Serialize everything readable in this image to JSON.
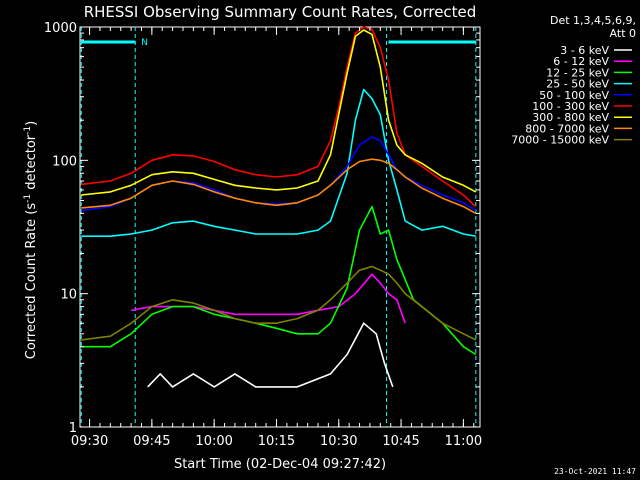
{
  "chart_data": {
    "type": "line",
    "title": "RHESSI Observing Summary Count Rates, Corrected",
    "xlabel": "Start Time (02-Dec-04 09:27:42)",
    "ylabel": "Corrected Count Rate (s",
    "ylabel_sup1": "-1",
    "ylabel_mid": " detector",
    "ylabel_sup2": "-1",
    "ylabel_end": ")",
    "y_scale": "log",
    "ylim": [
      1,
      1000
    ],
    "y_ticks": [
      1,
      10,
      100,
      1000
    ],
    "y_tick_labels": [
      "1",
      "10",
      "100",
      "1000"
    ],
    "x_unit": "minutes after 09:00",
    "xlim": [
      27.7,
      124.0
    ],
    "x_ticks": [
      30,
      45,
      60,
      75,
      90,
      105,
      120
    ],
    "x_tick_labels": [
      "09:30",
      "09:45",
      "10:00",
      "10:15",
      "10:30",
      "10:45",
      "11:00"
    ],
    "legend_header": [
      "Det 1,3,4,5,6,9,",
      "Att 0"
    ],
    "legend_position": "right",
    "markers": [
      {
        "x": 28.0,
        "label": ""
      },
      {
        "x": 41.0,
        "label": "N"
      },
      {
        "x": 101.5,
        "label": ""
      },
      {
        "x": 123.0,
        "label": ""
      }
    ],
    "marker_color": "#00ffff",
    "series": [
      {
        "name": "3 - 6 keV",
        "color": "#ffffff",
        "x": [
          44,
          47,
          50,
          55,
          60,
          65,
          70,
          75,
          80,
          85,
          88,
          92,
          96,
          99,
          101,
          103
        ],
        "y": [
          2,
          2.5,
          2,
          2.5,
          2,
          2.5,
          2,
          2,
          2,
          2.3,
          2.5,
          3.5,
          6,
          5,
          3,
          2
        ]
      },
      {
        "name": "6 - 12 keV",
        "color": "#ff00ff",
        "x": [
          40,
          45,
          50,
          55,
          60,
          65,
          70,
          75,
          80,
          85,
          90,
          94,
          98,
          100,
          102,
          104,
          106
        ],
        "y": [
          7.5,
          8,
          8,
          8,
          7.5,
          7,
          7,
          7,
          7,
          7.5,
          8,
          10,
          14,
          12,
          10,
          9,
          6
        ]
      },
      {
        "name": "12 - 25 keV",
        "color": "#00ff00",
        "x": [
          28,
          35,
          40,
          45,
          50,
          55,
          60,
          65,
          70,
          75,
          80,
          85,
          88,
          92,
          95,
          98,
          100,
          102,
          104,
          108,
          115,
          120,
          123
        ],
        "y": [
          4,
          4,
          5,
          7,
          8,
          8,
          7,
          6.5,
          6,
          5.5,
          5,
          5,
          6,
          11,
          30,
          45,
          28,
          30,
          18,
          9,
          6,
          4,
          3.5
        ]
      },
      {
        "name": "25 - 50 keV",
        "color": "#00ffff",
        "x": [
          28,
          35,
          40,
          45,
          50,
          55,
          60,
          65,
          70,
          75,
          80,
          85,
          88,
          92,
          94,
          96,
          98,
          100,
          102,
          104,
          106,
          110,
          115,
          120,
          123
        ],
        "y": [
          27,
          27,
          28,
          30,
          34,
          35,
          32,
          30,
          28,
          28,
          28,
          30,
          35,
          80,
          200,
          340,
          290,
          220,
          100,
          60,
          35,
          30,
          32,
          28,
          27
        ]
      },
      {
        "name": "50 - 100 keV",
        "color": "#0000ff",
        "x": [
          28,
          35,
          40,
          45,
          50,
          55,
          60,
          65,
          70,
          75,
          80,
          85,
          88,
          92,
          95,
          98,
          100,
          102,
          104,
          106,
          110,
          115,
          120,
          123
        ],
        "y": [
          42,
          45,
          52,
          65,
          70,
          68,
          60,
          52,
          48,
          47,
          48,
          55,
          65,
          90,
          130,
          150,
          140,
          110,
          85,
          75,
          65,
          55,
          48,
          42
        ]
      },
      {
        "name": "100 - 300 keV",
        "color": "#ff0000",
        "x": [
          28,
          35,
          40,
          45,
          50,
          55,
          60,
          65,
          70,
          75,
          80,
          85,
          88,
          90,
          92,
          94,
          96,
          98,
          100,
          102,
          104,
          106,
          110,
          115,
          120,
          123
        ],
        "y": [
          66,
          70,
          80,
          100,
          110,
          108,
          98,
          85,
          78,
          75,
          78,
          90,
          140,
          250,
          500,
          900,
          1000,
          960,
          700,
          400,
          160,
          110,
          90,
          70,
          55,
          45
        ]
      },
      {
        "name": "300 - 800 keV",
        "color": "#ffff00",
        "x": [
          28,
          35,
          40,
          45,
          50,
          55,
          60,
          65,
          70,
          75,
          80,
          85,
          88,
          92,
          94,
          96,
          98,
          100,
          102,
          104,
          106,
          110,
          115,
          120,
          123
        ],
        "y": [
          55,
          58,
          65,
          78,
          82,
          80,
          72,
          65,
          62,
          60,
          62,
          70,
          110,
          450,
          850,
          950,
          880,
          500,
          200,
          130,
          110,
          95,
          75,
          65,
          58
        ]
      },
      {
        "name": "800 - 7000 keV",
        "color": "#ff8800",
        "x": [
          28,
          35,
          40,
          45,
          50,
          55,
          60,
          65,
          70,
          75,
          80,
          85,
          88,
          92,
          95,
          98,
          100,
          102,
          104,
          106,
          110,
          115,
          120,
          123
        ],
        "y": [
          44,
          46,
          52,
          65,
          70,
          66,
          58,
          52,
          48,
          46,
          48,
          55,
          65,
          85,
          98,
          102,
          100,
          95,
          85,
          75,
          62,
          52,
          45,
          40
        ]
      },
      {
        "name": "7000 - 15000 keV",
        "color": "#808000",
        "x": [
          28,
          35,
          40,
          45,
          50,
          55,
          60,
          65,
          70,
          75,
          80,
          85,
          88,
          92,
          95,
          98,
          100,
          102,
          104,
          106,
          110,
          115,
          120,
          123
        ],
        "y": [
          4.5,
          4.8,
          6,
          8,
          9,
          8.5,
          7.5,
          6.5,
          6,
          6,
          6.5,
          7.5,
          9,
          12,
          15,
          16,
          15,
          14,
          12,
          10,
          8,
          6,
          5,
          4.5
        ]
      }
    ],
    "grid": false,
    "timestamp": "23-Oct-2021 11:47"
  }
}
